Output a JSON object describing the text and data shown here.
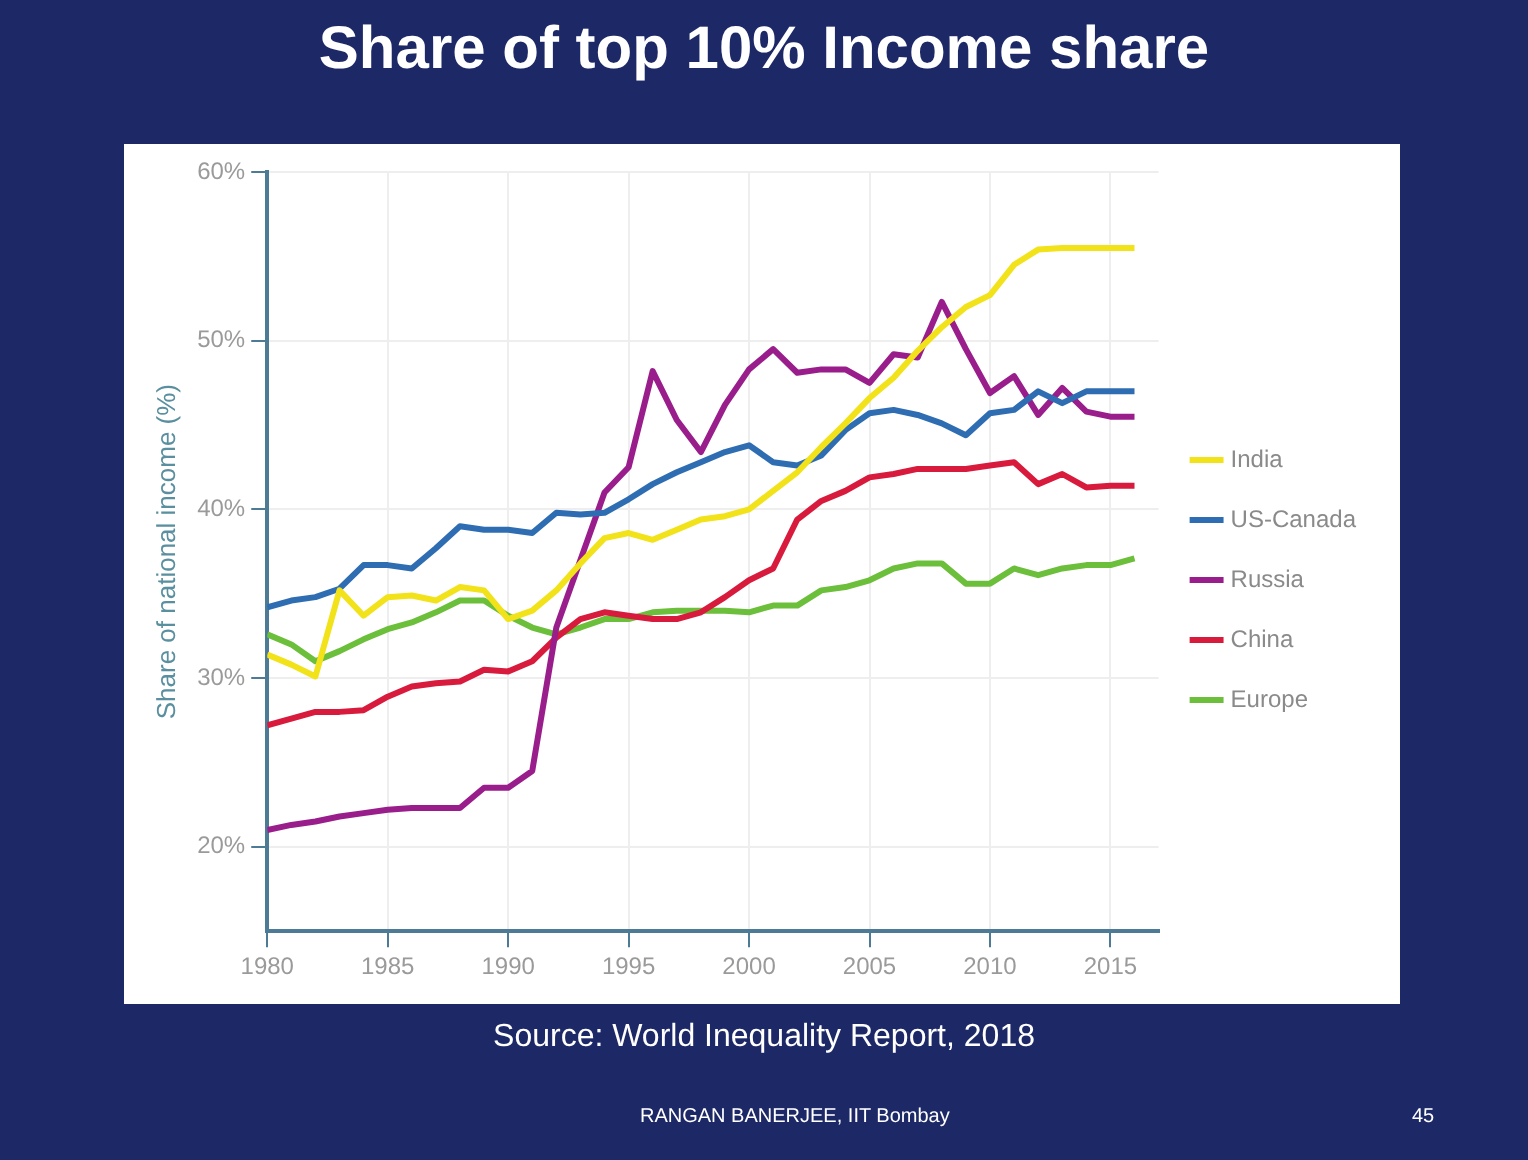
{
  "chart_data": {
    "type": "line",
    "title": "Share of top 10% Income share",
    "ylabel": "Share of national income (%)",
    "annotations": [
      "Source: World Inequality Report, 2018",
      "RANGAN BANERJEE,  IIT Bombay",
      "45"
    ],
    "x": [
      1980,
      1981,
      1982,
      1983,
      1984,
      1985,
      1986,
      1987,
      1988,
      1989,
      1990,
      1991,
      1992,
      1993,
      1994,
      1995,
      1996,
      1997,
      1998,
      1999,
      2000,
      2001,
      2002,
      2003,
      2004,
      2005,
      2006,
      2007,
      2008,
      2009,
      2010,
      2011,
      2012,
      2013,
      2014,
      2015,
      2016
    ],
    "series": [
      {
        "name": "India",
        "color": "#f2e21a",
        "values": [
          31.4,
          30.8,
          30.1,
          35.2,
          33.7,
          34.8,
          34.9,
          34.6,
          35.4,
          35.2,
          33.5,
          34,
          35.2,
          36.8,
          38.3,
          38.6,
          38.2,
          38.8,
          39.4,
          39.6,
          40,
          41.1,
          42.2,
          43.7,
          45.1,
          46.6,
          47.8,
          49.4,
          50.8,
          52,
          52.7,
          54.5,
          55.4,
          55.5,
          55.5,
          55.5,
          55.5
        ]
      },
      {
        "name": "US-Canada",
        "color": "#2f6db3",
        "values": [
          34.2,
          34.6,
          34.8,
          35.3,
          36.7,
          36.7,
          36.5,
          37.7,
          39,
          38.8,
          38.8,
          38.6,
          39.8,
          39.7,
          39.8,
          40.6,
          41.5,
          42.2,
          42.8,
          43.4,
          43.8,
          42.8,
          42.6,
          43.2,
          44.7,
          45.7,
          45.9,
          45.6,
          45.1,
          44.4,
          45.7,
          45.9,
          47,
          46.3,
          47,
          47,
          47
        ]
      },
      {
        "name": "Russia",
        "color": "#9a1d8c",
        "values": [
          21,
          21.3,
          21.5,
          21.8,
          22,
          22.2,
          22.3,
          22.3,
          22.3,
          23.5,
          23.5,
          24.5,
          33,
          37,
          41,
          42.5,
          48.2,
          45.3,
          43.4,
          46.2,
          48.3,
          49.5,
          48.1,
          48.3,
          48.3,
          47.5,
          49.2,
          49,
          52.3,
          49.5,
          46.9,
          47.9,
          45.6,
          47.2,
          45.8,
          45.5,
          45.5
        ]
      },
      {
        "name": "China",
        "color": "#d81b3c",
        "values": [
          27.2,
          27.6,
          28,
          28,
          28.1,
          28.9,
          29.5,
          29.7,
          29.8,
          30.5,
          30.4,
          31,
          32.4,
          33.5,
          33.9,
          33.7,
          33.5,
          33.5,
          33.9,
          34.8,
          35.8,
          36.5,
          39.4,
          40.5,
          41.1,
          41.9,
          42.1,
          42.4,
          42.4,
          42.4,
          42.6,
          42.8,
          41.5,
          42.1,
          41.3,
          41.4,
          41.4
        ]
      },
      {
        "name": "Europe",
        "color": "#6cbf3b",
        "values": [
          32.6,
          32,
          31,
          31.6,
          32.3,
          32.9,
          33.3,
          33.9,
          34.6,
          34.6,
          33.7,
          33,
          32.6,
          33,
          33.5,
          33.5,
          33.9,
          34,
          34,
          34,
          33.9,
          34.3,
          34.3,
          35.2,
          35.4,
          35.8,
          36.5,
          36.8,
          36.8,
          35.6,
          35.6,
          36.5,
          36.1,
          36.5,
          36.7,
          36.7,
          37.1
        ]
      }
    ],
    "xlim": [
      1980,
      2017
    ],
    "xticks": [
      1980,
      1985,
      1990,
      1995,
      2000,
      2005,
      2010,
      2015
    ],
    "ylim": [
      15,
      60
    ],
    "yticks": [
      {
        "value": 20,
        "label": "20%"
      },
      {
        "value": 30,
        "label": "30%"
      },
      {
        "value": 40,
        "label": "40%"
      },
      {
        "value": 50,
        "label": "50%"
      },
      {
        "value": 60,
        "label": "60%"
      }
    ],
    "grid": true,
    "legend": "right",
    "marker": "none",
    "line_style": "solid"
  }
}
